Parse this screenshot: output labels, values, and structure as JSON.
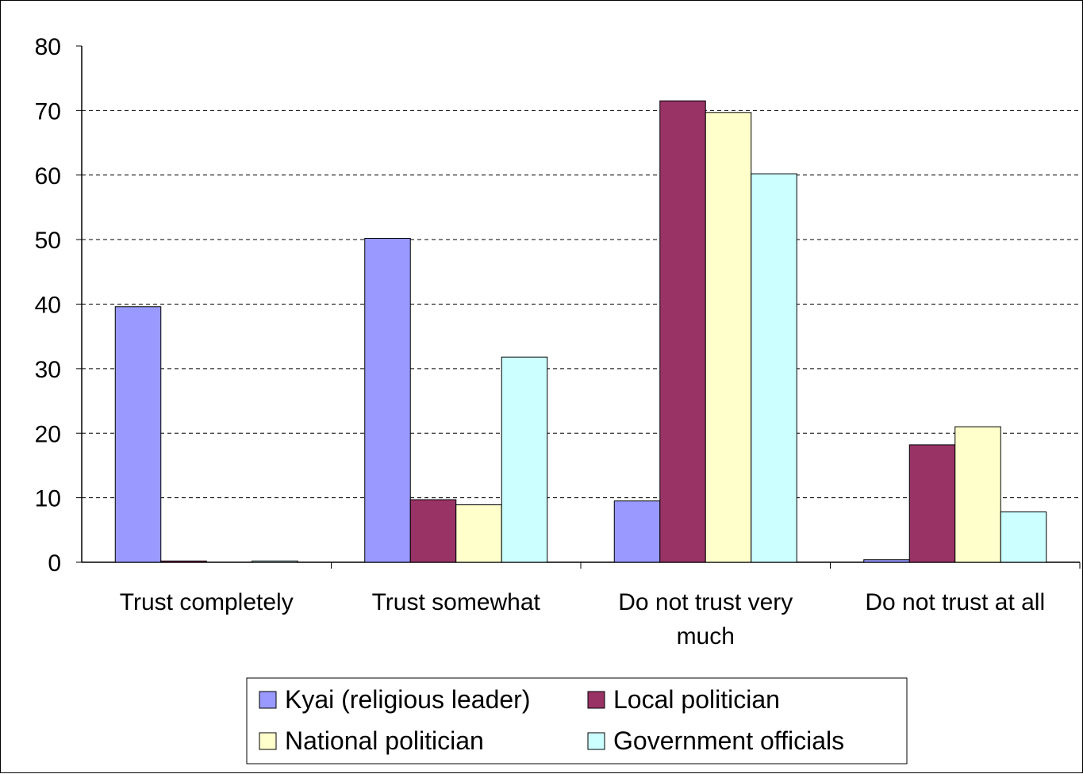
{
  "chart_data": {
    "type": "bar",
    "title": "",
    "xlabel": "",
    "ylabel": "",
    "ylim": [
      0,
      80
    ],
    "yticks": [
      0,
      10,
      20,
      30,
      40,
      50,
      60,
      70,
      80
    ],
    "grid": "horizontal dashed",
    "legend_position": "bottom",
    "categories": [
      [
        "Trust completely"
      ],
      [
        "Trust somewhat"
      ],
      [
        "Do not trust very",
        "much"
      ],
      [
        "Do not trust at all"
      ]
    ],
    "series": [
      {
        "name": "Kyai (religious leader)",
        "color": "#9999ff",
        "values": [
          39.6,
          50.2,
          9.5,
          0.4
        ]
      },
      {
        "name": "Local politician",
        "color": "#993366",
        "values": [
          0.2,
          9.7,
          71.5,
          18.2
        ]
      },
      {
        "name": "National politician",
        "color": "#ffffcc",
        "values": [
          0.0,
          8.9,
          69.7,
          21.0
        ]
      },
      {
        "name": "Government officials",
        "color": "#ccffff",
        "values": [
          0.2,
          31.8,
          60.2,
          7.8
        ]
      }
    ]
  }
}
